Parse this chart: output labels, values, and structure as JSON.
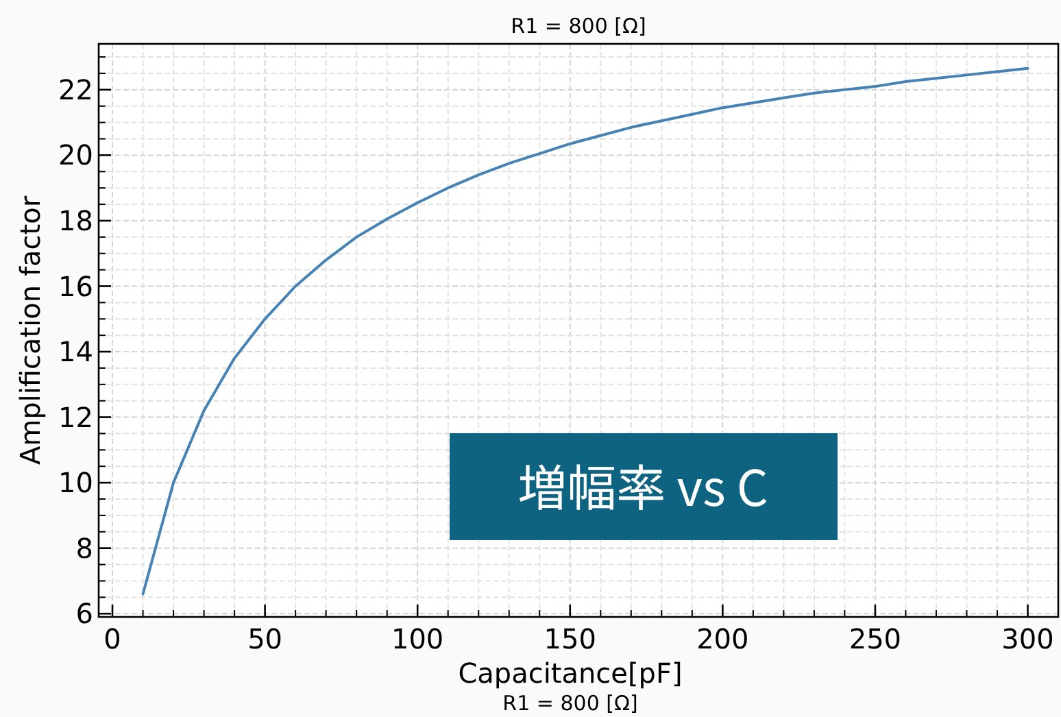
{
  "chart_data": {
    "type": "line",
    "title": "R1 = 800 [Ω]",
    "xlabel": "Capacitance[pF]",
    "ylabel": "Amplification factor",
    "x": [
      10,
      20,
      30,
      40,
      50,
      60,
      70,
      80,
      90,
      100,
      110,
      120,
      130,
      140,
      150,
      160,
      170,
      180,
      190,
      200,
      210,
      220,
      230,
      240,
      250,
      260,
      270,
      280,
      290,
      300
    ],
    "series": [
      {
        "color": "#4682b4",
        "values": [
          6.6,
          10.0,
          12.2,
          13.8,
          15.0,
          16.0,
          16.8,
          17.5,
          18.05,
          18.55,
          19.0,
          19.4,
          19.75,
          20.05,
          20.35,
          20.6,
          20.85,
          21.05,
          21.25,
          21.45,
          21.6,
          21.75,
          21.9,
          22.0,
          22.1,
          22.25,
          22.35,
          22.45,
          22.55,
          22.65
        ]
      }
    ],
    "xlim": [
      -4.5,
      310
    ],
    "ylim": [
      5.9,
      23.4
    ],
    "xticks": [
      0,
      50,
      100,
      150,
      200,
      250,
      300
    ],
    "yticks": [
      6,
      8,
      10,
      12,
      14,
      16,
      18,
      20,
      22
    ],
    "grid": true,
    "line_style": "solid",
    "annotations": [
      "増幅率 vs C",
      "R1 = 800 [Ω]"
    ]
  }
}
